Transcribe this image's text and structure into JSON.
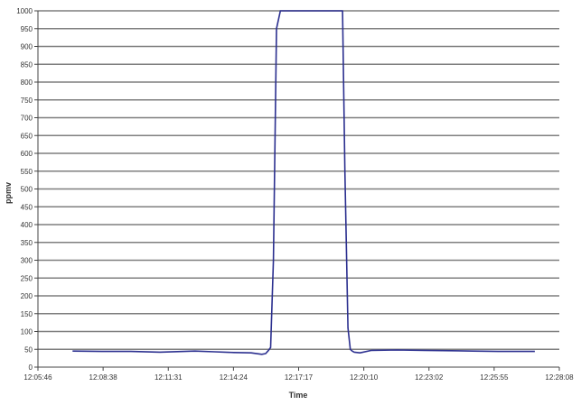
{
  "chart_data": {
    "type": "line",
    "title": "",
    "xlabel": "Time",
    "ylabel": "ppmv",
    "ylim": [
      0,
      1000
    ],
    "yticks": [
      0,
      50,
      100,
      150,
      200,
      250,
      300,
      350,
      400,
      450,
      500,
      550,
      600,
      650,
      700,
      750,
      800,
      850,
      900,
      950,
      1000
    ],
    "x_axis": "time",
    "xlim": [
      "12:05:46",
      "12:28:08"
    ],
    "xtick_labels": [
      "12:05:46",
      "12:08:38",
      "12:11:31",
      "12:14:24",
      "12:17:17",
      "12:20:10",
      "12:23:02",
      "12:25:55",
      "12:28:08"
    ],
    "grid": true,
    "legend": "none",
    "colors": {
      "series": "#2b2f8f",
      "grid": "#7f7f7f",
      "plot_bg": "#ffffff",
      "axis": "#444444"
    },
    "series": [
      {
        "x": [
          "12:07:15",
          "12:08:30",
          "12:09:45",
          "12:11:00",
          "12:12:30",
          "12:13:20",
          "12:14:10",
          "12:14:55",
          "12:15:22",
          "12:15:32",
          "12:15:38",
          "12:15:45",
          "12:15:52",
          "12:16:00",
          "12:16:10",
          "12:16:15",
          "12:18:50",
          "12:18:56",
          "12:19:04",
          "12:19:10",
          "12:19:15",
          "12:19:20",
          "12:19:35",
          "12:20:05",
          "12:21:10",
          "12:22:20",
          "12:23:30",
          "12:24:25",
          "12:25:30",
          "12:26:20",
          "12:27:05"
        ],
        "values": [
          45,
          44,
          44,
          42,
          45,
          43,
          41,
          40,
          36,
          38,
          45,
          55,
          300,
          950,
          1000,
          1000,
          1000,
          550,
          110,
          50,
          45,
          42,
          40,
          47,
          48,
          47,
          46,
          45,
          44,
          44,
          44
        ]
      }
    ]
  }
}
